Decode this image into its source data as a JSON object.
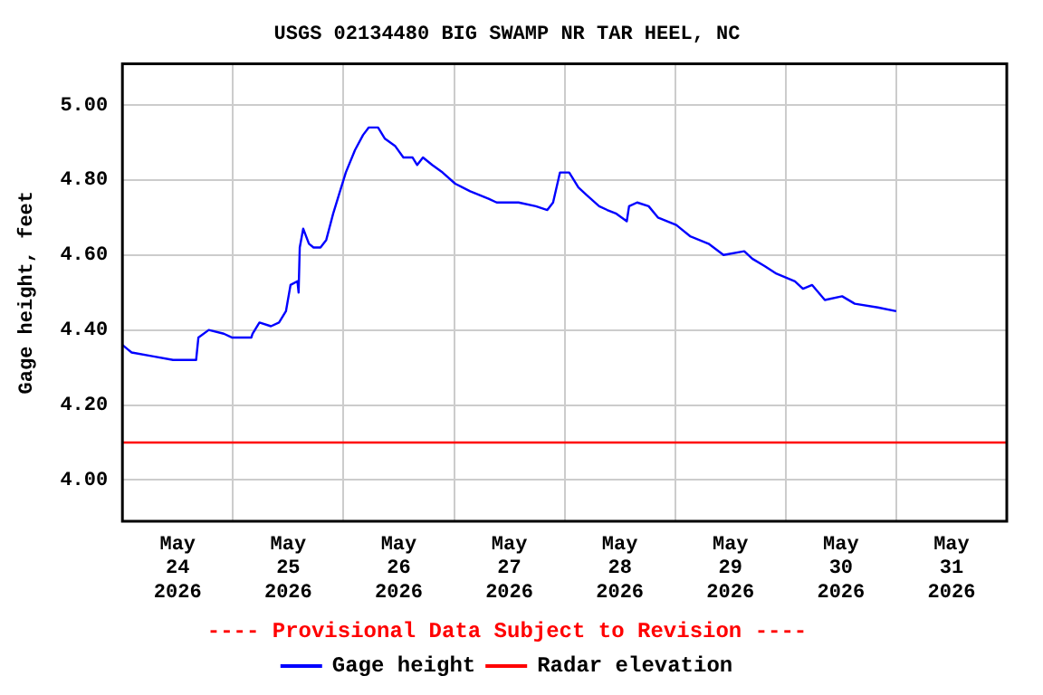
{
  "chart_data": {
    "type": "line",
    "title": "USGS 02134480 BIG SWAMP NR TAR HEEL, NC",
    "ylabel": "Gage height, feet",
    "annotations": [
      "---- Provisional Data Subject to Revision ----"
    ],
    "xlim": [
      "2026-05-24T00:00",
      "2026-06-01T00:00"
    ],
    "xticks": [
      {
        "value": "2026-05-24T00:00",
        "label": null
      },
      {
        "value": "2026-05-24T12:00",
        "label": "May 24 2026"
      },
      {
        "value": "2026-05-25T00:00",
        "label": null
      },
      {
        "value": "2026-05-25T12:00",
        "label": "May 25 2026"
      },
      {
        "value": "2026-05-26T00:00",
        "label": null
      },
      {
        "value": "2026-05-26T12:00",
        "label": "May 26 2026"
      },
      {
        "value": "2026-05-27T00:00",
        "label": null
      },
      {
        "value": "2026-05-27T12:00",
        "label": "May 27 2026"
      },
      {
        "value": "2026-05-28T00:00",
        "label": null
      },
      {
        "value": "2026-05-28T12:00",
        "label": "May 28 2026"
      },
      {
        "value": "2026-05-29T00:00",
        "label": null
      },
      {
        "value": "2026-05-29T12:00",
        "label": "May 29 2026"
      },
      {
        "value": "2026-05-30T00:00",
        "label": null
      },
      {
        "value": "2026-05-30T12:00",
        "label": "May 30 2026"
      },
      {
        "value": "2026-05-31T00:00",
        "label": null
      },
      {
        "value": "2026-05-31T12:00",
        "label": "May 31 2026"
      },
      {
        "value": "2026-06-01T00:00",
        "label": null
      }
    ],
    "ylim": [
      3.89,
      5.11
    ],
    "yticks": [
      {
        "value": 4,
        "label": "4.00"
      },
      {
        "value": 4.2,
        "label": "4.20"
      },
      {
        "value": 4.4,
        "label": "4.40"
      },
      {
        "value": 4.6,
        "label": "4.60"
      },
      {
        "value": 4.8,
        "label": "4.80"
      },
      {
        "value": 5,
        "label": "5.00"
      }
    ],
    "grid": true,
    "legend": "bottom",
    "marker": "none",
    "series": [
      {
        "name": "Gage height",
        "color": "#0000ff",
        "x": [
          "2026-05-24T00:00",
          "2026-05-24T01:00",
          "2026-05-24T02:00",
          "2026-05-24T06:30",
          "2026-05-24T11:00",
          "2026-05-24T16:00",
          "2026-05-24T16:30",
          "2026-05-24T18:45",
          "2026-05-24T22:00",
          "2026-05-24T23:45",
          "2026-05-25T04:00",
          "2026-05-25T04:15",
          "2026-05-25T05:45",
          "2026-05-25T08:15",
          "2026-05-25T10:00",
          "2026-05-25T11:30",
          "2026-05-25T12:30",
          "2026-05-25T14:00",
          "2026-05-25T14:15",
          "2026-05-25T14:30",
          "2026-05-25T15:15",
          "2026-05-25T16:30",
          "2026-05-25T17:30",
          "2026-05-25T19:00",
          "2026-05-25T20:15",
          "2026-05-25T21:45",
          "2026-05-25T23:00",
          "2026-05-26T00:30",
          "2026-05-26T02:30",
          "2026-05-26T04:15",
          "2026-05-26T05:30",
          "2026-05-26T07:30",
          "2026-05-26T09:00",
          "2026-05-26T11:15",
          "2026-05-26T13:00",
          "2026-05-26T15:00",
          "2026-05-26T16:00",
          "2026-05-26T17:15",
          "2026-05-26T19:15",
          "2026-05-26T21:30",
          "2026-05-27T00:15",
          "2026-05-27T03:30",
          "2026-05-27T07:30",
          "2026-05-27T09:15",
          "2026-05-27T14:00",
          "2026-05-27T17:45",
          "2026-05-27T20:15",
          "2026-05-27T21:30",
          "2026-05-27T23:00",
          "2026-05-28T01:00",
          "2026-05-28T03:00",
          "2026-05-28T04:45",
          "2026-05-28T07:30",
          "2026-05-28T09:15",
          "2026-05-28T11:15",
          "2026-05-28T13:30",
          "2026-05-28T14:00",
          "2026-05-28T15:45",
          "2026-05-28T18:15",
          "2026-05-28T20:15",
          "2026-05-29T00:15",
          "2026-05-29T03:15",
          "2026-05-29T07:15",
          "2026-05-29T10:30",
          "2026-05-29T15:00",
          "2026-05-29T16:45",
          "2026-05-29T19:30",
          "2026-05-29T22:00",
          "2026-05-30T02:00",
          "2026-05-30T03:45",
          "2026-05-30T05:45",
          "2026-05-30T08:30",
          "2026-05-30T12:15",
          "2026-05-30T15:00",
          "2026-05-30T20:00",
          "2026-05-31T00:00"
        ],
        "values": [
          4.36,
          4.35,
          4.34,
          4.33,
          4.32,
          4.32,
          4.38,
          4.4,
          4.39,
          4.38,
          4.38,
          4.39,
          4.42,
          4.41,
          4.42,
          4.45,
          4.52,
          4.53,
          4.5,
          4.62,
          4.67,
          4.63,
          4.62,
          4.62,
          4.64,
          4.71,
          4.76,
          4.82,
          4.88,
          4.92,
          4.94,
          4.94,
          4.91,
          4.89,
          4.86,
          4.86,
          4.84,
          4.86,
          4.84,
          4.82,
          4.79,
          4.77,
          4.75,
          4.74,
          4.74,
          4.73,
          4.72,
          4.74,
          4.82,
          4.82,
          4.78,
          4.76,
          4.73,
          4.72,
          4.71,
          4.69,
          4.73,
          4.74,
          4.73,
          4.7,
          4.68,
          4.65,
          4.63,
          4.6,
          4.61,
          4.59,
          4.57,
          4.55,
          4.53,
          4.51,
          4.52,
          4.48,
          4.49,
          4.47,
          4.46,
          4.45
        ]
      },
      {
        "name": "Radar elevation",
        "color": "#ff0000",
        "x": [
          "2026-05-24T00:00",
          "2026-06-01T00:00"
        ],
        "values": [
          4.1,
          4.1
        ]
      }
    ]
  }
}
